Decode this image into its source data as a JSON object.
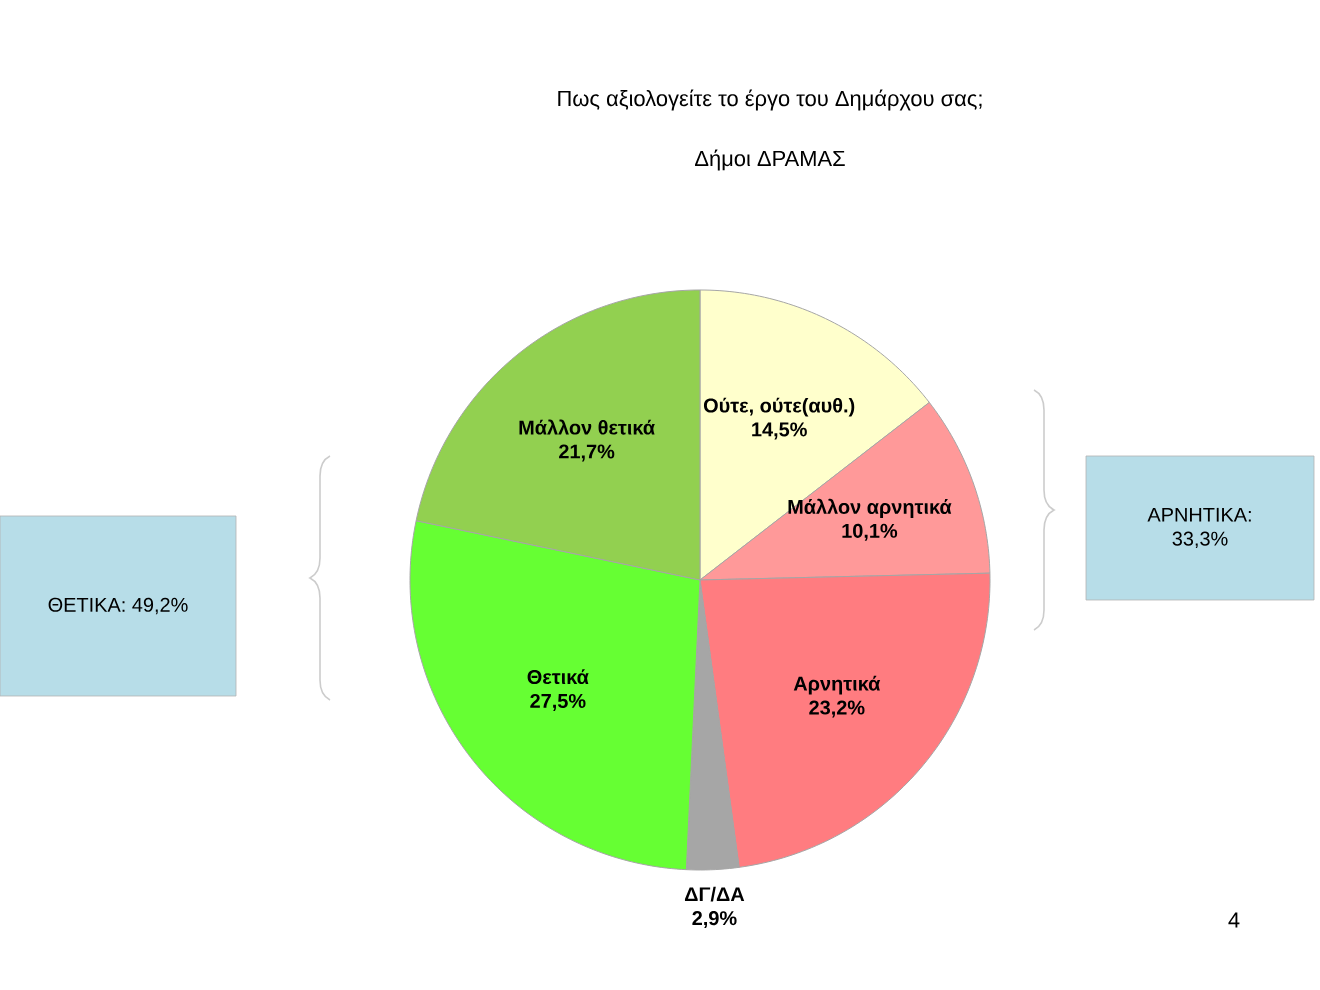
{
  "chart_data": {
    "type": "pie",
    "title": "Πως αξιολογείτε το έργο του Δημάρχου σας;",
    "subtitle": "Δήμοι ΔΡΑΜΑΣ",
    "categories": [
      "Ούτε, ούτε(αυθ.)",
      "Μάλλον αρνητικά",
      "Αρνητικά",
      "ΔΓ/ΔΑ",
      "Θετικά",
      "Μάλλον θετικά"
    ],
    "values": [
      14.5,
      10.1,
      23.2,
      2.9,
      27.5,
      21.7
    ],
    "value_labels": [
      "14,5%",
      "10,1%",
      "23,2%",
      "2,9%",
      "27,5%",
      "21,7%"
    ],
    "colors": [
      "#ffffcc",
      "#ff9999",
      "#ff7c80",
      "#a6a6a6",
      "#66ff33",
      "#92d050"
    ],
    "annotations": [
      "ΘΕΤΙΚΑ: 49,2%",
      "ΑΡΝΗΤΙΚΑ: 33,3%",
      "4"
    ]
  }
}
